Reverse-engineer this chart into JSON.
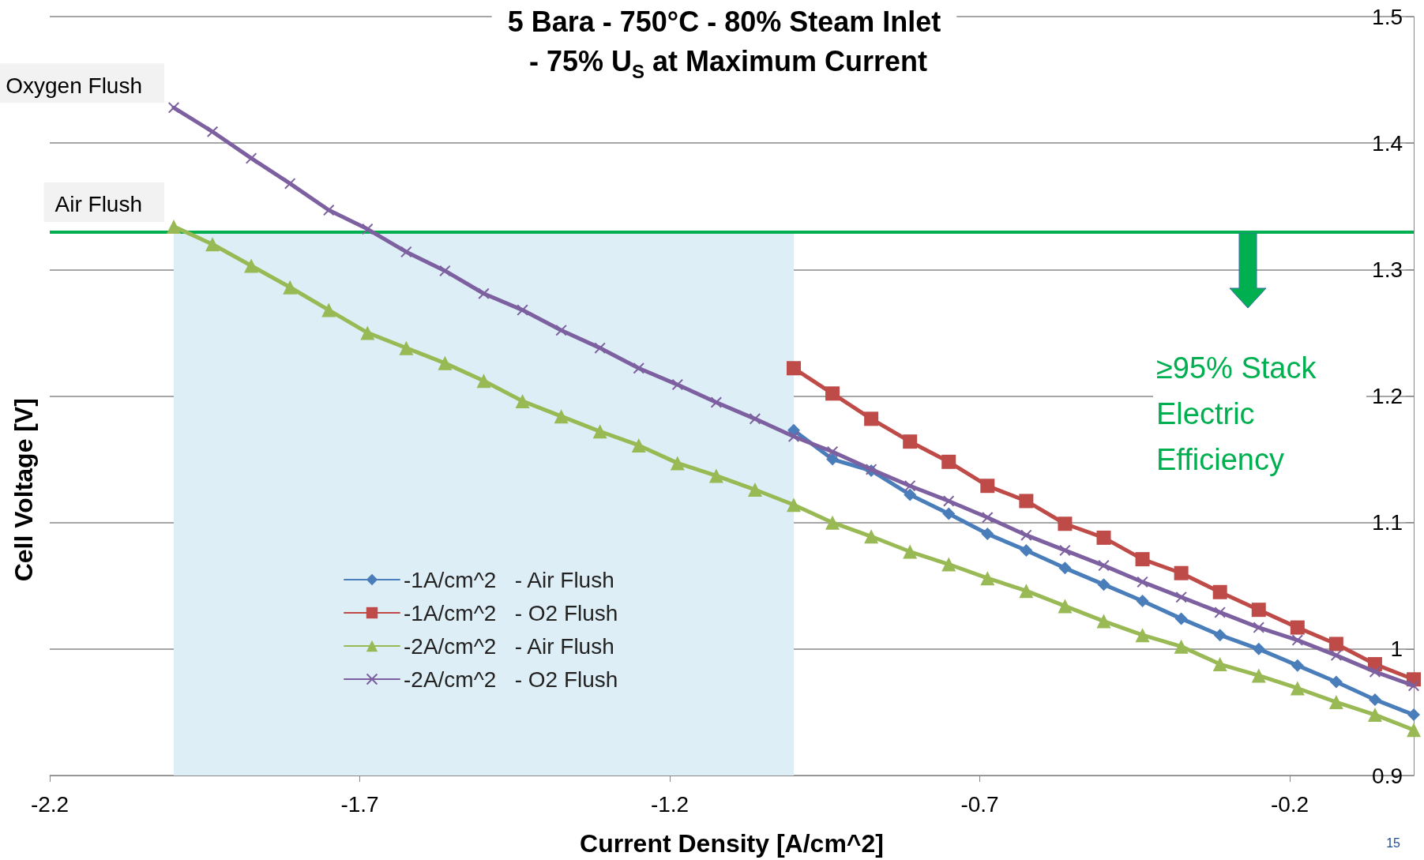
{
  "chart_data": {
    "type": "line",
    "title": "5 Bara - 750°C - 80% Steam Inlet\n - 75% U$_{S}$ at Maximum Current",
    "xlabel": "Current Density [A/cm^2]",
    "ylabel": "Cell Voltage [V]",
    "x": [
      -1.0,
      -0.9375,
      -0.875,
      -0.8125,
      -0.75,
      -0.6875,
      -0.625,
      -0.5625,
      -0.5,
      -0.4375,
      -0.375,
      -0.3125,
      -0.25,
      -0.1875,
      -0.125,
      -0.0625,
      0
    ],
    "series": [
      {
        "name": "-1A/cm^2   - Air Flush",
        "color": "#4a7ebb",
        "marker": "diamond",
        "values": [
          1.173,
          1.15,
          1.141,
          1.122,
          1.107,
          1.091,
          1.078,
          1.064,
          1.051,
          1.038,
          1.024,
          1.011,
          1.0,
          0.987,
          0.974,
          0.96,
          0.948
        ]
      },
      {
        "name": "-1A/cm^2   - O2 Flush",
        "color": "#be4b48",
        "marker": "square",
        "values": [
          1.222,
          1.202,
          1.182,
          1.164,
          1.148,
          1.129,
          1.117,
          1.099,
          1.088,
          1.071,
          1.06,
          1.045,
          1.031,
          1.017,
          1.004,
          0.988,
          0.976
        ]
      },
      {
        "name": "-2A/cm^2   - Air Flush",
        "color": "#98b954",
        "marker": "triangle",
        "x": [
          -2.0,
          -1.9375,
          -1.875,
          -1.8125,
          -1.75,
          -1.6875,
          -1.625,
          -1.5625,
          -1.5,
          -1.4375,
          -1.375,
          -1.3125,
          -1.25,
          -1.1875,
          -1.125,
          -1.0625,
          -1.0,
          -0.9375,
          -0.875,
          -0.8125,
          -0.75,
          -0.6875,
          -0.625,
          -0.5625,
          -0.5,
          -0.4375,
          -0.375,
          -0.3125,
          -0.25,
          -0.1875,
          -0.125,
          -0.0625,
          0
        ],
        "values": [
          1.334,
          1.32,
          1.303,
          1.286,
          1.268,
          1.25,
          1.238,
          1.226,
          1.212,
          1.196,
          1.184,
          1.172,
          1.161,
          1.147,
          1.137,
          1.126,
          1.114,
          1.1,
          1.089,
          1.077,
          1.067,
          1.056,
          1.046,
          1.034,
          1.022,
          1.011,
          1.002,
          0.988,
          0.979,
          0.969,
          0.958,
          0.948,
          0.936
        ]
      },
      {
        "name": "-2A/cm^2   - O2 Flush",
        "color": "#7d60a0",
        "marker": "cross",
        "x": [
          -2.0,
          -1.9375,
          -1.875,
          -1.8125,
          -1.75,
          -1.6875,
          -1.625,
          -1.5625,
          -1.5,
          -1.4375,
          -1.375,
          -1.3125,
          -1.25,
          -1.1875,
          -1.125,
          -1.0625,
          -1.0,
          -0.9375,
          -0.875,
          -0.8125,
          -0.75,
          -0.6875,
          -0.625,
          -0.5625,
          -0.5,
          -0.4375,
          -0.375,
          -0.3125,
          -0.25,
          -0.1875,
          -0.125,
          -0.0625,
          0
        ],
        "values": [
          1.428,
          1.409,
          1.388,
          1.368,
          1.347,
          1.332,
          1.314,
          1.299,
          1.281,
          1.268,
          1.252,
          1.238,
          1.222,
          1.209,
          1.195,
          1.182,
          1.168,
          1.156,
          1.142,
          1.129,
          1.117,
          1.104,
          1.09,
          1.078,
          1.066,
          1.053,
          1.041,
          1.029,
          1.017,
          1.007,
          0.995,
          0.982,
          0.971
        ]
      }
    ],
    "xlim": [
      -2.2,
      0
    ],
    "xticks": [
      -2.2,
      -1.7,
      -1.2,
      -0.7,
      -0.2
    ],
    "ylim": [
      0.9,
      1.5
    ],
    "yticks": [
      0.9,
      1,
      1.1,
      1.2,
      1.3,
      1.4,
      1.5
    ],
    "grid": "y",
    "legend": "bottom left",
    "line_style": "solid",
    "ref_lines": [
      {
        "axis": "y",
        "value": 1.33,
        "label": "≥95% Stack Electric Efficiency",
        "color": "#00b050"
      }
    ],
    "bands": [
      {
        "axis": "x",
        "from": -2.0,
        "to": -1.0,
        "color": "#deeef6"
      }
    ],
    "annotations": [
      {
        "text": "Oxygen Flush",
        "x": -2.0,
        "y": 1.428
      },
      {
        "text": "Air Flush",
        "x": -2.0,
        "y": 1.334
      },
      "15"
    ]
  }
}
